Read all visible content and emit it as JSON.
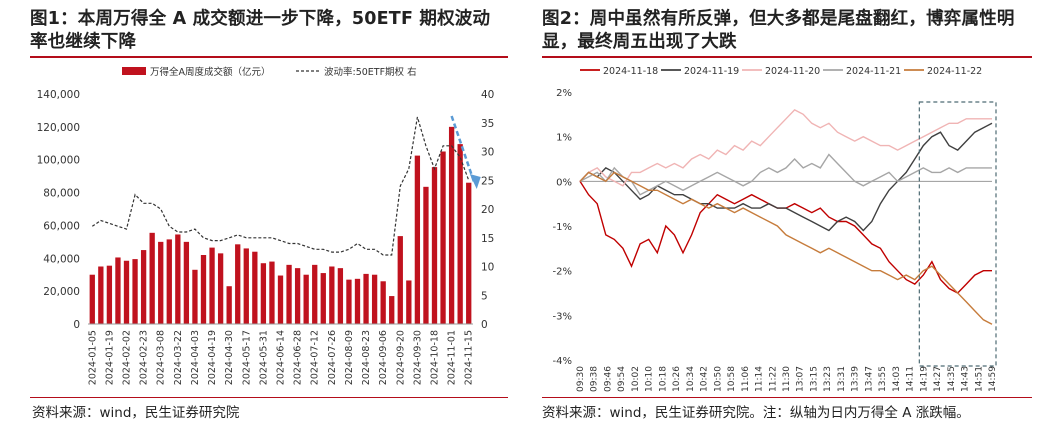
{
  "panels": {
    "left": {
      "title": "图1：本周万得全 A 成交额进一步下降，50ETF 期权波动率也继续下降",
      "source": "资料来源：wind，民生证券研究院"
    },
    "right": {
      "title": "图2：周中虽然有所反弹，但大多都是尾盘翻红，博弈属性明显，最终周五出现了大跌",
      "source": "资料来源：wind，民生证券研究院。注：纵轴为日内万得全 A 涨跌幅。"
    }
  },
  "chart_data": [
    {
      "type": "bar",
      "legend_placement": "top",
      "series": [
        {
          "name": "万得全A周度成交额（亿元）",
          "type": "bar",
          "axis": "left",
          "color": "#c0121e",
          "values": [
            30000,
            35000,
            35500,
            40500,
            38500,
            39500,
            45000,
            55500,
            50000,
            51500,
            54500,
            50000,
            33000,
            42000,
            46500,
            43000,
            23000,
            48500,
            46000,
            44000,
            37000,
            38000,
            29500,
            36000,
            34000,
            30000,
            36000,
            31000,
            35000,
            34000,
            27000,
            27500,
            30500,
            30000,
            26000,
            17000,
            53500,
            26500,
            102500,
            83500,
            95500,
            105000,
            120000,
            109500,
            86000
          ]
        },
        {
          "name": "波动率:50ETF期权 右",
          "type": "line",
          "axis": "right",
          "color": "#333333",
          "dash": true,
          "values": [
            17,
            18,
            17.5,
            17,
            16.5,
            22.5,
            21,
            21,
            20,
            17,
            16,
            16,
            16.5,
            15,
            14.5,
            14.5,
            15,
            15.5,
            15,
            15,
            15,
            15,
            14.5,
            14,
            14,
            13.5,
            13,
            13,
            12.5,
            12.5,
            13,
            14,
            13,
            13,
            12,
            12,
            24,
            27,
            36,
            31,
            27,
            31,
            31,
            29,
            25
          ]
        }
      ],
      "x_tick_labels": [
        "2024-01-05",
        "2024-01-19",
        "2024-02-02",
        "2024-02-23",
        "2024-03-08",
        "2024-03-22",
        "2024-04-03",
        "2024-04-19",
        "2024-04-30",
        "2024-05-17",
        "2024-05-31",
        "2024-06-14",
        "2024-06-28",
        "2024-07-12",
        "2024-07-26",
        "2024-08-09",
        "2024-08-23",
        "2024-09-06",
        "2024-09-20",
        "2024-09-30",
        "2024-10-18",
        "2024-11-01",
        "2024-11-15"
      ],
      "y_left": {
        "ylim": [
          0,
          140000
        ],
        "ticks": [
          "0",
          "20,000",
          "40,000",
          "60,000",
          "80,000",
          "100,000",
          "120,000",
          "140,000"
        ]
      },
      "y_right": {
        "ylim": [
          0,
          40
        ],
        "ticks": [
          "0",
          "5",
          "10",
          "15",
          "20",
          "25",
          "30",
          "35",
          "40"
        ]
      },
      "annotation": {
        "type": "arrow",
        "color": "#5b9bd5",
        "dash": true,
        "description_from": "2024-11-08",
        "description_to": "2024-11-15"
      }
    },
    {
      "type": "line",
      "legend_placement": "top",
      "series": [
        {
          "name": "2024-11-18",
          "color": "#c00000",
          "values": [
            0,
            -0.3,
            -0.5,
            -1.2,
            -1.3,
            -1.5,
            -1.9,
            -1.4,
            -1.3,
            -1.6,
            -1.0,
            -1.2,
            -1.6,
            -1.2,
            -0.7,
            -0.5,
            -0.3,
            -0.4,
            -0.5,
            -0.4,
            -0.3,
            -0.4,
            -0.5,
            -0.6,
            -0.6,
            -0.5,
            -0.6,
            -0.7,
            -0.6,
            -0.8,
            -0.9,
            -0.9,
            -1.0,
            -1.2,
            -1.4,
            -1.5,
            -1.8,
            -2.0,
            -2.2,
            -2.3,
            -2.1,
            -1.8,
            -2.2,
            -2.4,
            -2.5,
            -2.3,
            -2.1,
            -2.0,
            -2.0
          ]
        },
        {
          "name": "2024-11-19",
          "color": "#404040",
          "values": [
            0,
            0.2,
            0.1,
            0.3,
            0.2,
            0.0,
            -0.2,
            -0.4,
            -0.3,
            -0.1,
            -0.2,
            -0.3,
            -0.3,
            -0.4,
            -0.5,
            -0.5,
            -0.6,
            -0.6,
            -0.6,
            -0.5,
            -0.6,
            -0.6,
            -0.5,
            -0.6,
            -0.6,
            -0.7,
            -0.8,
            -0.9,
            -1.0,
            -1.1,
            -0.9,
            -0.8,
            -0.9,
            -1.1,
            -0.9,
            -0.5,
            -0.2,
            0.0,
            0.2,
            0.5,
            0.8,
            1.0,
            1.1,
            0.8,
            0.7,
            0.9,
            1.1,
            1.2,
            1.3
          ]
        },
        {
          "name": "2024-11-20",
          "color": "#f0b4b4",
          "values": [
            0,
            0.2,
            0.3,
            0.1,
            0.0,
            -0.1,
            0.2,
            0.2,
            0.3,
            0.4,
            0.3,
            0.4,
            0.3,
            0.5,
            0.6,
            0.5,
            0.7,
            0.6,
            0.8,
            0.7,
            0.9,
            0.8,
            1.0,
            1.2,
            1.4,
            1.6,
            1.5,
            1.3,
            1.2,
            1.3,
            1.1,
            1.0,
            0.9,
            1.0,
            0.9,
            0.8,
            0.8,
            0.7,
            0.8,
            0.9,
            1.0,
            1.1,
            1.2,
            1.3,
            1.3,
            1.4,
            1.4,
            1.4,
            1.4
          ]
        },
        {
          "name": "2024-11-21",
          "color": "#a6a6a6",
          "values": [
            0,
            0.1,
            0.2,
            0.0,
            0.3,
            0.1,
            0.0,
            -0.3,
            -0.2,
            -0.1,
            0.0,
            -0.1,
            -0.2,
            -0.1,
            0.0,
            0.1,
            0.2,
            0.1,
            0.0,
            -0.1,
            0.0,
            0.2,
            0.3,
            0.2,
            0.3,
            0.5,
            0.3,
            0.4,
            0.3,
            0.6,
            0.4,
            0.2,
            0.0,
            -0.1,
            0.0,
            0.1,
            0.2,
            0.0,
            0.1,
            0.2,
            0.3,
            0.2,
            0.2,
            0.3,
            0.2,
            0.3,
            0.3,
            0.3,
            0.3
          ]
        },
        {
          "name": "2024-11-22",
          "color": "#c67c3c",
          "values": [
            0,
            0.2,
            0.1,
            0.0,
            0.2,
            0.1,
            0.0,
            -0.1,
            -0.2,
            -0.2,
            -0.3,
            -0.4,
            -0.5,
            -0.4,
            -0.5,
            -0.6,
            -0.5,
            -0.6,
            -0.7,
            -0.6,
            -0.7,
            -0.8,
            -0.9,
            -1.0,
            -1.2,
            -1.3,
            -1.4,
            -1.5,
            -1.6,
            -1.5,
            -1.6,
            -1.7,
            -1.8,
            -1.9,
            -2.0,
            -2.0,
            -2.1,
            -2.2,
            -2.1,
            -2.2,
            -2.0,
            -1.9,
            -2.1,
            -2.3,
            -2.5,
            -2.7,
            -2.9,
            -3.1,
            -3.2
          ]
        }
      ],
      "x_tick_labels": [
        "09:30",
        "09:38",
        "09:46",
        "09:54",
        "10:02",
        "10:10",
        "10:18",
        "10:26",
        "10:34",
        "10:42",
        "10:50",
        "10:58",
        "11:06",
        "11:14",
        "11:22",
        "11:30",
        "13:07",
        "13:15",
        "13:23",
        "13:31",
        "13:39",
        "13:47",
        "13:55",
        "14:03",
        "14:11",
        "14:19",
        "14:27",
        "14:35",
        "14:43",
        "14:51",
        "14:59"
      ],
      "y": {
        "ylim": [
          -4,
          2
        ],
        "ticks": [
          "2%",
          "1%",
          "0%",
          "-1%",
          "-2%",
          "-3%",
          "-4%"
        ]
      },
      "annotation": {
        "type": "dashed-box",
        "color": "#4d6a73",
        "from": "14:19",
        "to": "14:59"
      }
    }
  ]
}
